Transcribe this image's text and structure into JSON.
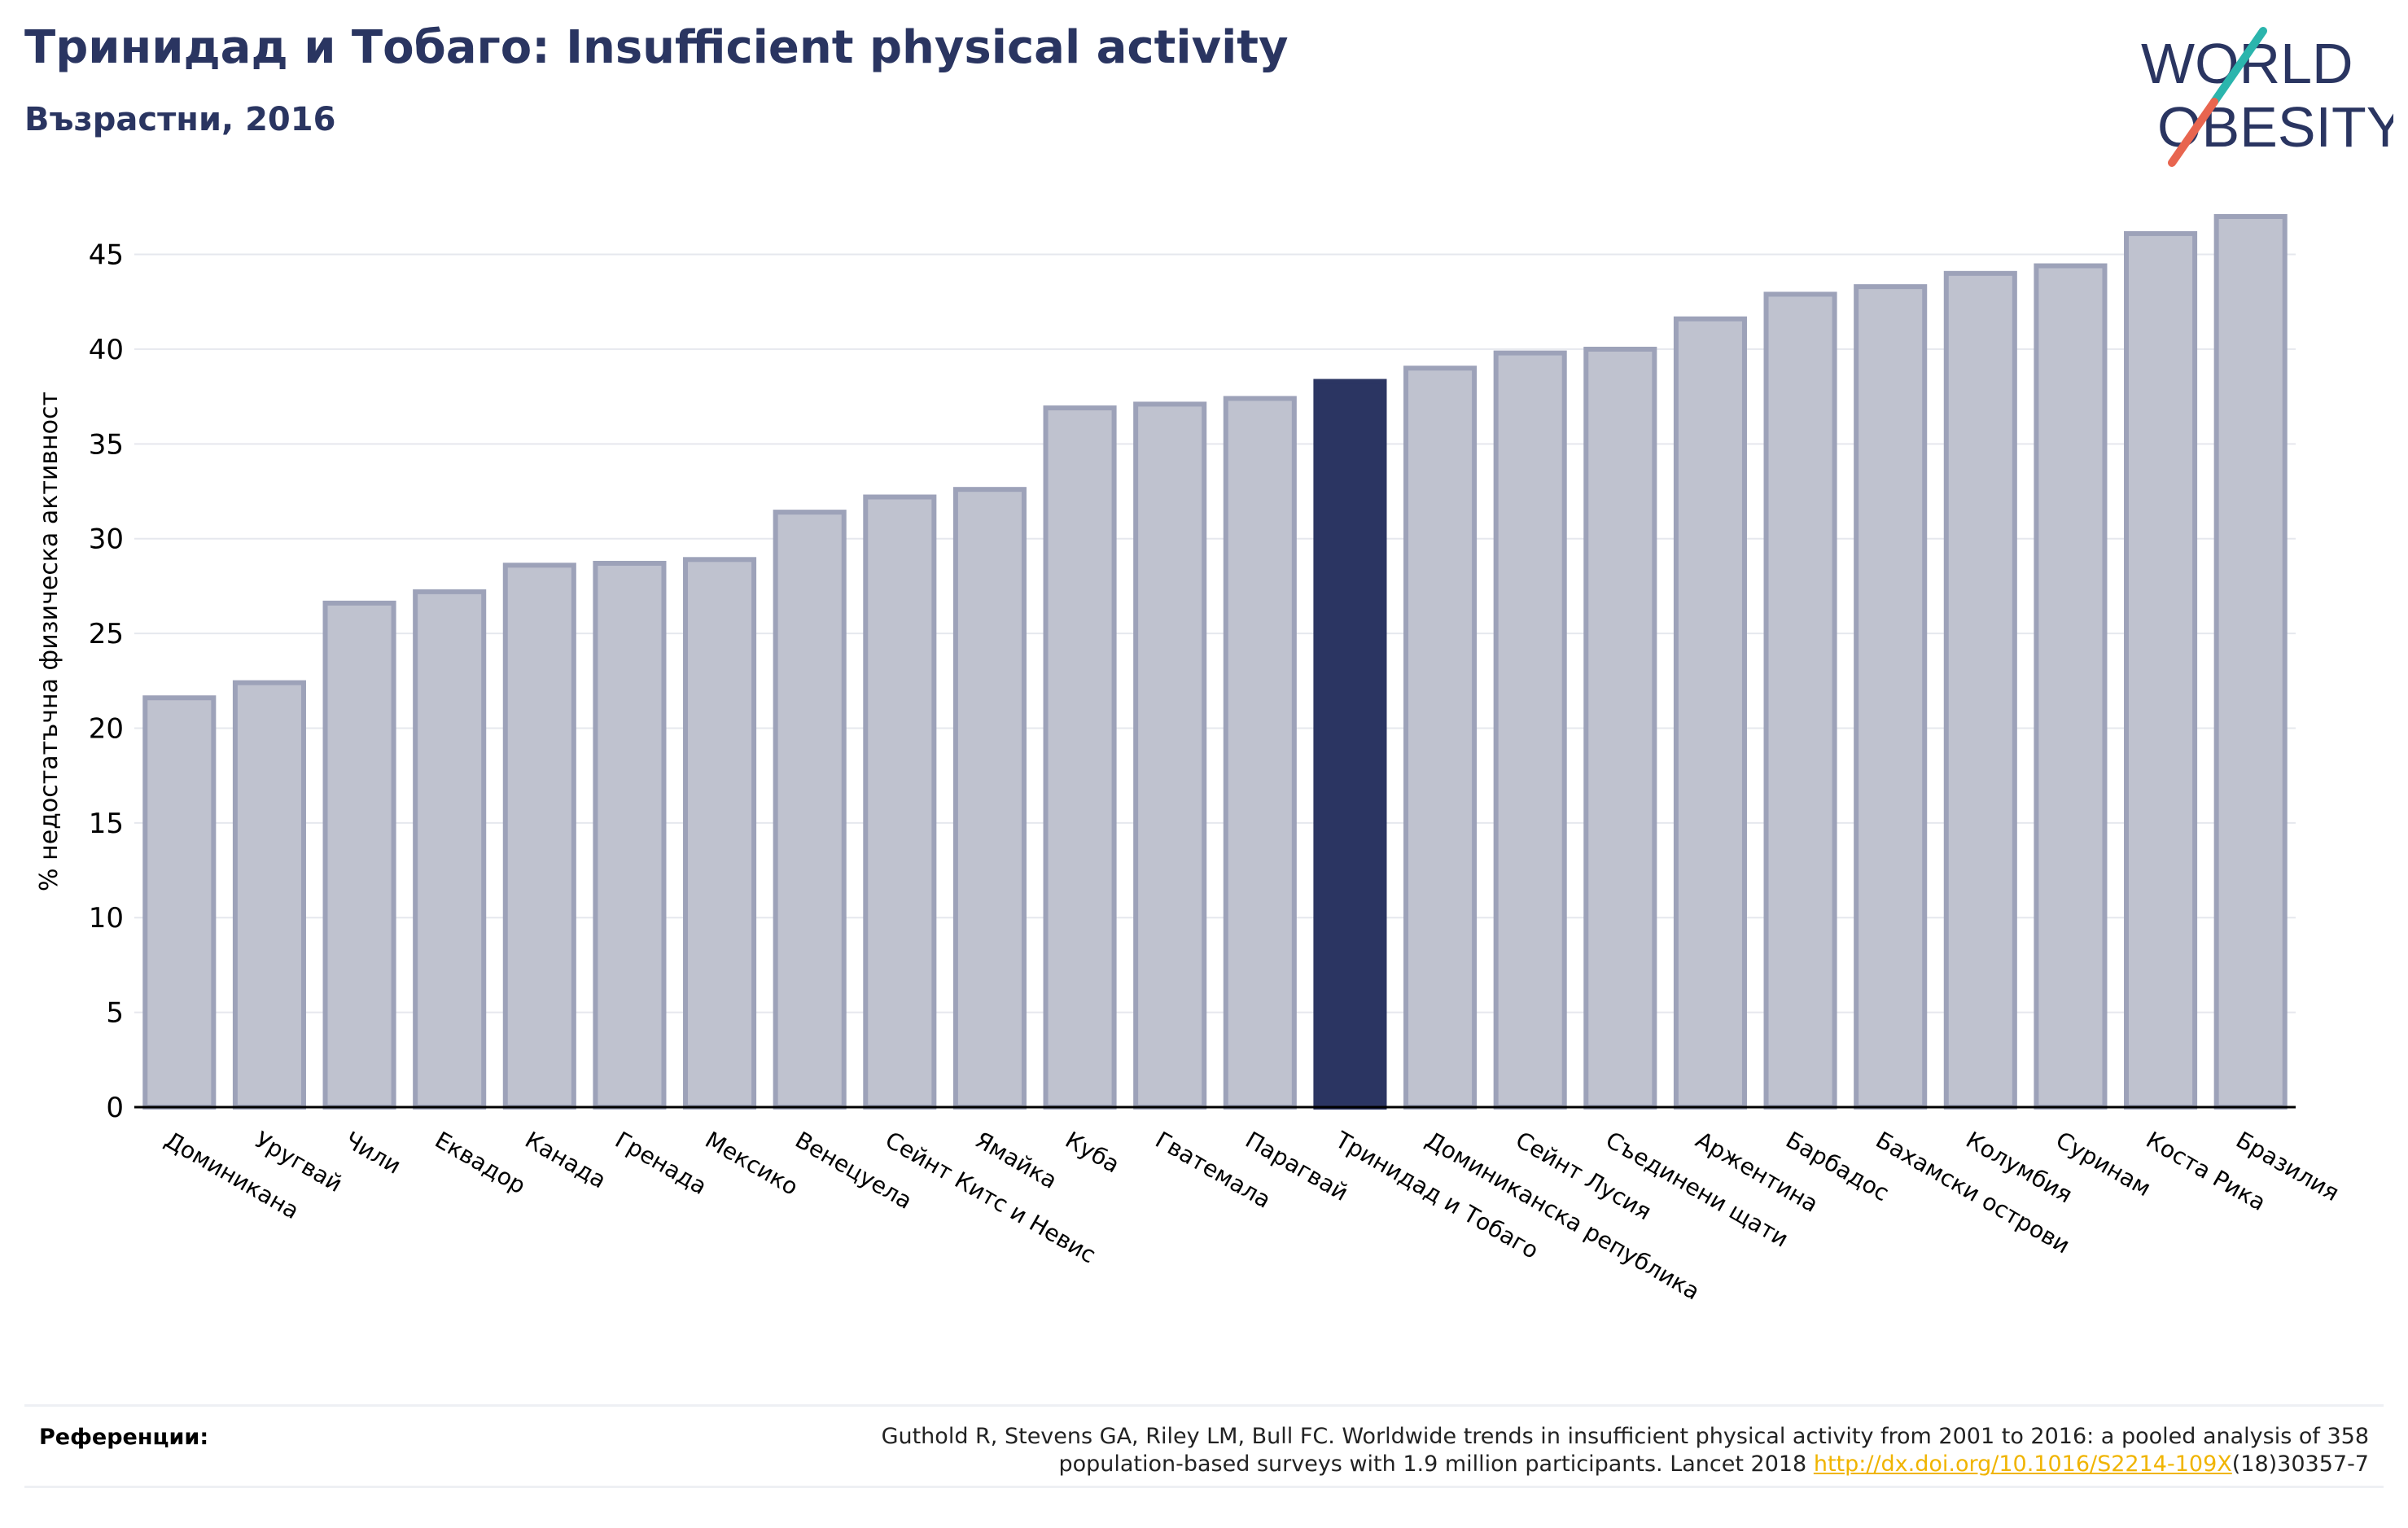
{
  "header": {
    "title": "Тринидад и Тобаго: Insufficient physical activity",
    "subtitle": "Възрастни, 2016"
  },
  "logo": {
    "line1": "WORLD",
    "line2": "OBESITY"
  },
  "colors": {
    "title": "#2a3561",
    "bar_muted": "#bfc2cf",
    "bar_stroke": "#9da2b9",
    "bar_highlight": "#2b3562",
    "logo_teal": "#2bb5ad",
    "logo_orange": "#e8654f",
    "link": "#f0b400"
  },
  "chart_data": {
    "type": "bar",
    "ylabel": "% недостатъчна физическа активност",
    "ylim": [
      0,
      47
    ],
    "yticks": [
      0,
      5,
      10,
      15,
      20,
      25,
      30,
      35,
      40,
      45
    ],
    "grid": true,
    "highlight": "Тринидад и Тобаго",
    "categories": [
      "Доминикана",
      "Уругвай",
      "Чили",
      "Еквадор",
      "Канада",
      "Гренада",
      "Мексико",
      "Венецуела",
      "Сейнт Китс и Невис",
      "Ямайка",
      "Куба",
      "Гватемала",
      "Парагвай",
      "Тринидад и Тобаго",
      "Доминиканска република",
      "Сейнт Лусия",
      "Съединени щати",
      "Аржентина",
      "Барбадос",
      "Бахамски острови",
      "Колумбия",
      "Суринам",
      "Коста Рика",
      "Бразилия"
    ],
    "values": [
      21.6,
      22.4,
      26.6,
      27.2,
      28.6,
      28.7,
      28.9,
      31.4,
      32.2,
      32.6,
      36.9,
      37.1,
      37.4,
      38.3,
      39.0,
      39.8,
      40.0,
      41.6,
      42.9,
      43.3,
      44.0,
      44.4,
      46.1,
      47.0
    ]
  },
  "references": {
    "label": "Референции:",
    "text_line1": "Guthold R, Stevens GA, Riley LM, Bull FC. Worldwide trends in insufficient physical activity from 2001 to 2016: a pooled analysis of 358",
    "text_line2_start": "population-based surveys with 1.9 million participants. Lancet 2018 ",
    "link": "http://dx.doi.org/10.1016/S2214-109X",
    "text_line2_end": "(18)30357-7"
  }
}
